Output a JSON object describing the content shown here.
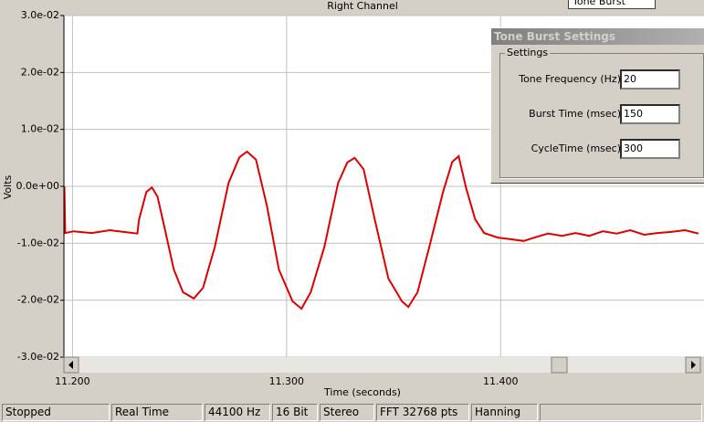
{
  "chart_data": {
    "type": "line",
    "title": "Right Channel",
    "x_label": "Time (seconds)",
    "y_label": "Volts",
    "x": [
      11.1962,
      11.1966,
      11.2004,
      11.209,
      11.2175,
      11.2239,
      11.2303,
      11.2311,
      11.2345,
      11.2371,
      11.2397,
      11.2431,
      11.2473,
      11.2516,
      11.2567,
      11.261,
      11.2665,
      11.2729,
      11.278,
      11.2815,
      11.2857,
      11.2908,
      11.2964,
      11.3028,
      11.307,
      11.3113,
      11.3177,
      11.3241,
      11.3284,
      11.3318,
      11.336,
      11.3412,
      11.3476,
      11.3539,
      11.3569,
      11.3612,
      11.3667,
      11.3731,
      11.3774,
      11.3804,
      11.3838,
      11.3881,
      11.3923,
      11.3987,
      11.4051,
      11.4107,
      11.4158,
      11.4222,
      11.4286,
      11.435,
      11.4414,
      11.4478,
      11.4542,
      11.4606,
      11.467,
      11.4733,
      11.4797,
      11.4861,
      11.4925
    ],
    "series": [
      {
        "color": "#e00000",
        "values": [
          0,
          -0.0082,
          -0.0079,
          -0.0082,
          -0.0077,
          -0.008,
          -0.0083,
          -0.0058,
          -0.001,
          -0.0002,
          -0.0018,
          -0.0074,
          -0.0146,
          -0.0186,
          -0.0197,
          -0.0178,
          -0.0106,
          0.0006,
          0.0051,
          0.0061,
          0.0047,
          -0.0034,
          -0.0146,
          -0.0202,
          -0.0215,
          -0.0186,
          -0.0106,
          0.0006,
          0.0042,
          0.005,
          0.003,
          -0.0058,
          -0.0162,
          -0.0202,
          -0.0212,
          -0.0186,
          -0.0106,
          -0.001,
          0.0043,
          0.0053,
          -0.0002,
          -0.0058,
          -0.0082,
          -0.009,
          -0.0093,
          -0.0096,
          -0.009,
          -0.0083,
          -0.0087,
          -0.0082,
          -0.0087,
          -0.0079,
          -0.0083,
          -0.0077,
          -0.0085,
          -0.0082,
          -0.008,
          -0.0077,
          -0.0083
        ]
      }
    ],
    "xlim": [
      11.196,
      11.495
    ],
    "ylim": [
      -0.03,
      0.03
    ],
    "xticks": [
      {
        "value": 11.2,
        "label": "11.200"
      },
      {
        "value": 11.3,
        "label": "11.300"
      },
      {
        "value": 11.4,
        "label": "11.400"
      }
    ],
    "yticks": [
      {
        "value": -0.03,
        "label": "-3.0e-02"
      },
      {
        "value": -0.02,
        "label": "-2.0e-02"
      },
      {
        "value": -0.01,
        "label": "-1.0e-02"
      },
      {
        "value": 0,
        "label": "0.0e+00"
      },
      {
        "value": 0.01,
        "label": "1.0e-02"
      },
      {
        "value": 0.02,
        "label": "2.0e-02"
      },
      {
        "value": 0.03,
        "label": "3.0e-02"
      }
    ],
    "grid": true
  },
  "toolbar": {
    "combo": "Tone Burst"
  },
  "dialog": {
    "title": "Tone Burst Settings",
    "group": "Settings",
    "fields": [
      {
        "label": "Tone Frequency (Hz)",
        "value": "20"
      },
      {
        "label": "Burst Time (msec)",
        "value": "150"
      },
      {
        "label": "CycleTime (msec)",
        "value": "300"
      }
    ]
  },
  "status_bar": [
    "Stopped",
    "Real Time",
    "44100 Hz",
    "16 Bit",
    "Stereo",
    "FFT 32768 pts",
    "Hanning"
  ]
}
